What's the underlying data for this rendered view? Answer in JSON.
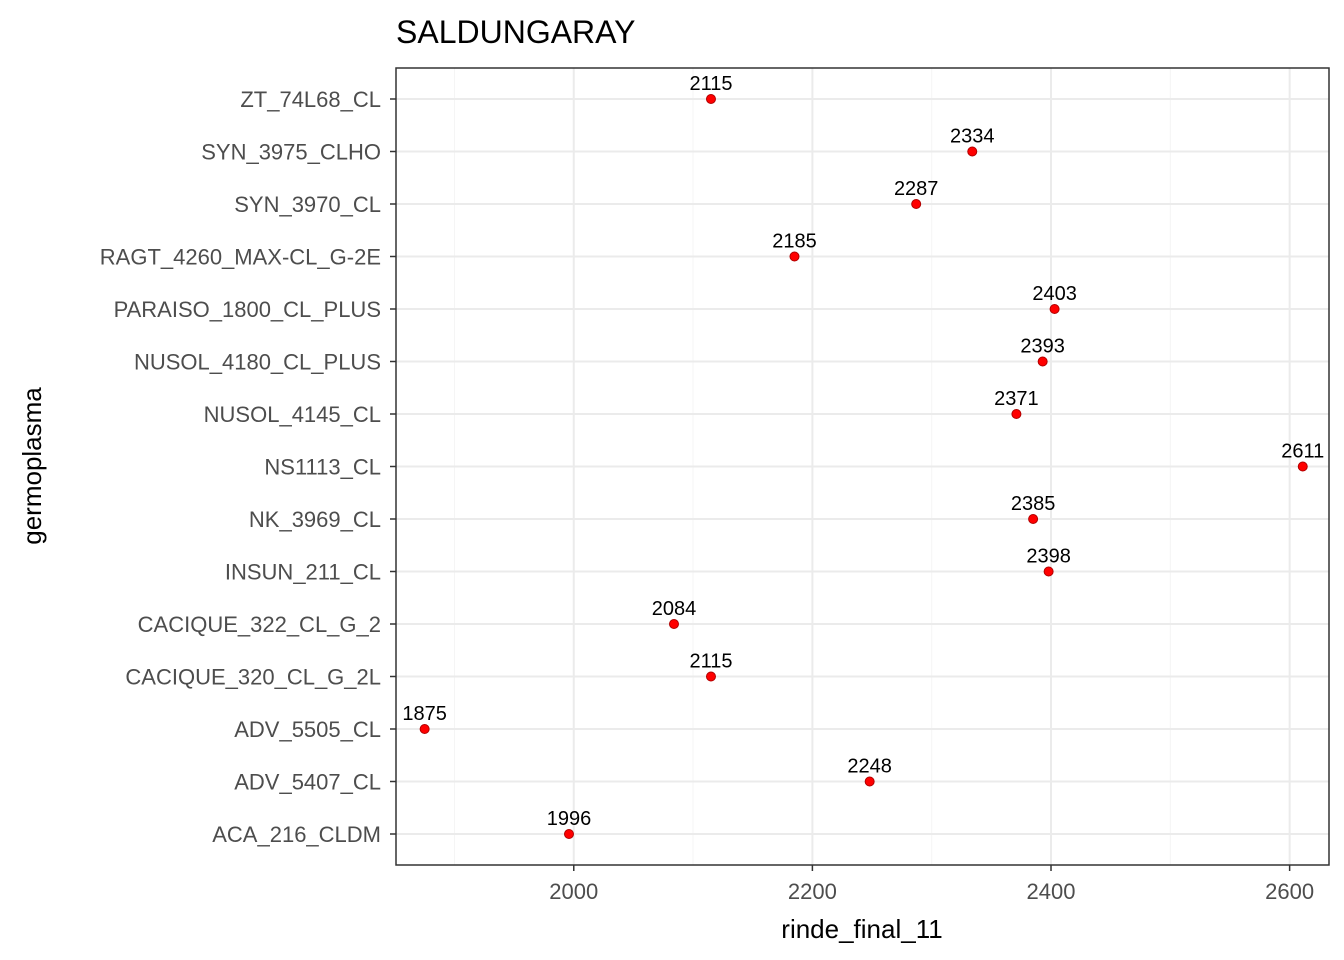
{
  "chart_data": {
    "type": "scatter",
    "title": "SALDUNGARAY",
    "xlabel": "rinde_final_11",
    "ylabel": "germoplasma",
    "xlim": [
      1851,
      2633
    ],
    "x_ticks": [
      2000,
      2200,
      2400,
      2600
    ],
    "x_minor_ticks": [
      1900,
      2100,
      2300,
      2500
    ],
    "grid": true,
    "legend": "none",
    "point_color": "#ff0000",
    "point_outline_color": "#b00000",
    "categories": [
      "ACA_216_CLDM",
      "ADV_5407_CL",
      "ADV_5505_CL",
      "CACIQUE_320_CL_G_2L",
      "CACIQUE_322_CL_G_2",
      "INSUN_211_CL",
      "NK_3969_CL",
      "NS1113_CL",
      "NUSOL_4145_CL",
      "NUSOL_4180_CL_PLUS",
      "PARAISO_1800_CL_PLUS",
      "RAGT_4260_MAX-CL_G-2E",
      "SYN_3970_CL",
      "SYN_3975_CLHO",
      "ZT_74L68_CL"
    ],
    "values": [
      1996,
      2248,
      1875,
      2115,
      2084,
      2398,
      2385,
      2611,
      2371,
      2393,
      2403,
      2185,
      2287,
      2334,
      2115
    ],
    "labels": [
      "1996",
      "2248",
      "1875",
      "2115",
      "2084",
      "2398",
      "2385",
      "2611",
      "2371",
      "2393",
      "2403",
      "2185",
      "2287",
      "2334",
      "2115"
    ],
    "x_tick_labels": [
      "2000",
      "2200",
      "2400",
      "2600"
    ]
  }
}
